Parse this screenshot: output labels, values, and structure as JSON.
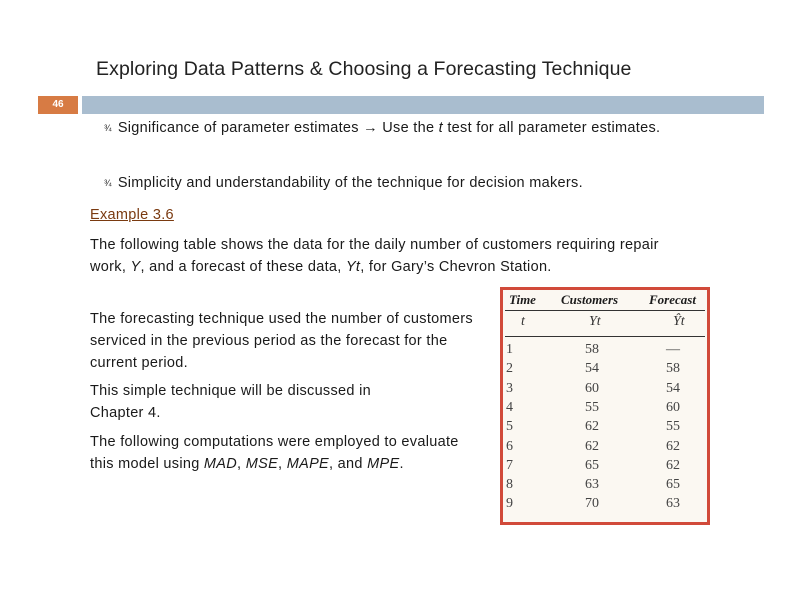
{
  "slide": {
    "title": "Exploring Data Patterns & Choosing a Forecasting Technique",
    "number": "46"
  },
  "bullets": [
    {
      "mark": "¾",
      "text_before": "Significance of parameter estimates → Use the ",
      "text_italic": "t",
      "text_after": " test for all parameter estimates."
    },
    {
      "mark": "¾",
      "text": "Simplicity and understandability of the technique for decision makers."
    }
  ],
  "example_label": "Example 3.6",
  "para1": {
    "a": "The following table shows the data for the daily number of customers requiring repair work, ",
    "b": "Y",
    "c": ", and a forecast of these data, ",
    "d": "Yt",
    "e": ", for Gary’s Chevron Station."
  },
  "para2": "The forecasting technique used the number of customers serviced in the previous period as the forecast for the current period.",
  "para3": "This simple technique will be discussed in Chapter 4.",
  "para4": {
    "a": "The following computations were employed to evaluate this model using ",
    "b": "MAD",
    "c": ", ",
    "d": "MSE",
    "e": ", ",
    "f": "MAPE",
    "g": ", and ",
    "h": "MPE",
    "i": "."
  },
  "table": {
    "headers": [
      "Time",
      "Customers",
      "Forecast"
    ],
    "symbols": [
      "t",
      "Yt",
      "Ŷt"
    ],
    "rows": [
      [
        "1",
        "58",
        "—"
      ],
      [
        "2",
        "54",
        "58"
      ],
      [
        "3",
        "60",
        "54"
      ],
      [
        "4",
        "55",
        "60"
      ],
      [
        "5",
        "62",
        "55"
      ],
      [
        "6",
        "62",
        "62"
      ],
      [
        "7",
        "65",
        "62"
      ],
      [
        "8",
        "63",
        "65"
      ],
      [
        "9",
        "70",
        "63"
      ]
    ]
  },
  "colors": {
    "accent_orange": "#d77b44",
    "bar_blue": "#a9bdcf",
    "table_border": "#d14a3a"
  }
}
